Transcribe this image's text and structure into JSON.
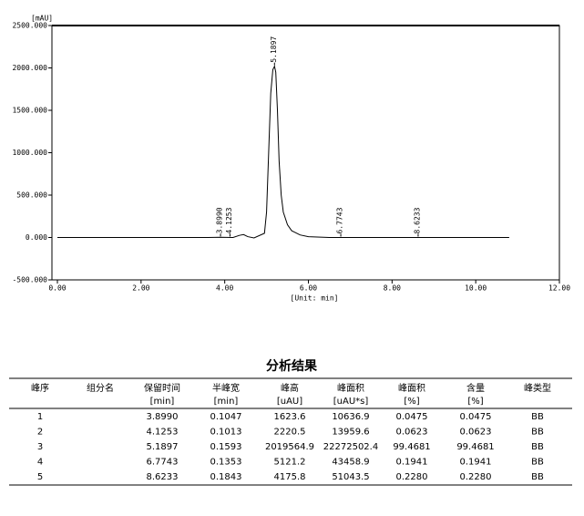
{
  "chart_data": {
    "type": "line",
    "y_axis_label": "[mAU]",
    "x_axis_label": "[Unit: min]",
    "xlim": [
      0,
      12
    ],
    "ylim": [
      -500,
      2500
    ],
    "xticks": [
      {
        "value": 0,
        "label": "0.00"
      },
      {
        "value": 2,
        "label": "2.00"
      },
      {
        "value": 4,
        "label": "4.00"
      },
      {
        "value": 6,
        "label": "6.00"
      },
      {
        "value": 8,
        "label": "8.00"
      },
      {
        "value": 10,
        "label": "10.00"
      },
      {
        "value": 12,
        "label": "12.00"
      }
    ],
    "yticks": [
      {
        "value": -500,
        "label": "-500.000"
      },
      {
        "value": 0,
        "label": "0.000"
      },
      {
        "value": 500,
        "label": "500.000"
      },
      {
        "value": 1000,
        "label": "1000.000"
      },
      {
        "value": 1500,
        "label": "1500.000"
      },
      {
        "value": 2000,
        "label": "2000.000"
      },
      {
        "value": 2500,
        "label": "2500.000"
      }
    ],
    "x": [
      0,
      3.6,
      3.9,
      4.2,
      4.35,
      4.45,
      4.55,
      4.7,
      4.95,
      5.0,
      5.05,
      5.1,
      5.15,
      5.19,
      5.22,
      5.26,
      5.3,
      5.35,
      5.4,
      5.5,
      5.6,
      5.8,
      6.0,
      6.5,
      8,
      10.8
    ],
    "series": [
      {
        "color": "#000000",
        "values": [
          0,
          0,
          2,
          0,
          25,
          35,
          10,
          -5,
          50,
          300,
          1000,
          1700,
          1980,
          2020,
          1950,
          1500,
          900,
          500,
          300,
          150,
          80,
          30,
          10,
          0,
          0,
          0
        ]
      }
    ],
    "peak_labels": [
      {
        "value": 3.899,
        "label": "3.8990"
      },
      {
        "value": 4.1253,
        "label": "4.1253"
      },
      {
        "value": 5.1897,
        "label": "5.1897"
      },
      {
        "value": 6.7743,
        "label": "6.7743"
      },
      {
        "value": 8.6233,
        "label": "8.6233"
      }
    ]
  },
  "table": {
    "title": "分析结果",
    "columns": [
      {
        "name": "峰序"
      },
      {
        "name": "组分名"
      },
      {
        "name": "保留时间",
        "unit": "[min]"
      },
      {
        "name": "半峰宽",
        "unit": "[min]"
      },
      {
        "name": "峰高",
        "unit": "[uAU]"
      },
      {
        "name": "峰面积",
        "unit": "[uAU*s]"
      },
      {
        "name": "峰面积",
        "unit": "[%]"
      },
      {
        "name": "含量",
        "unit": "[%]"
      },
      {
        "name": "峰类型"
      }
    ],
    "rows": [
      [
        "1",
        null,
        "3.8990",
        "0.1047",
        "1623.6",
        "10636.9",
        "0.0475",
        "0.0475",
        "BB"
      ],
      [
        "2",
        null,
        "4.1253",
        "0.1013",
        "2220.5",
        "13959.6",
        "0.0623",
        "0.0623",
        "BB"
      ],
      [
        "3",
        null,
        "5.1897",
        "0.1593",
        "2019564.9",
        "22272502.4",
        "99.4681",
        "99.4681",
        "BB"
      ],
      [
        "4",
        null,
        "6.7743",
        "0.1353",
        "5121.2",
        "43458.9",
        "0.1941",
        "0.1941",
        "BB"
      ],
      [
        "5",
        null,
        "8.6233",
        "0.1843",
        "4175.8",
        "51043.5",
        "0.2280",
        "0.2280",
        "BB"
      ]
    ]
  }
}
